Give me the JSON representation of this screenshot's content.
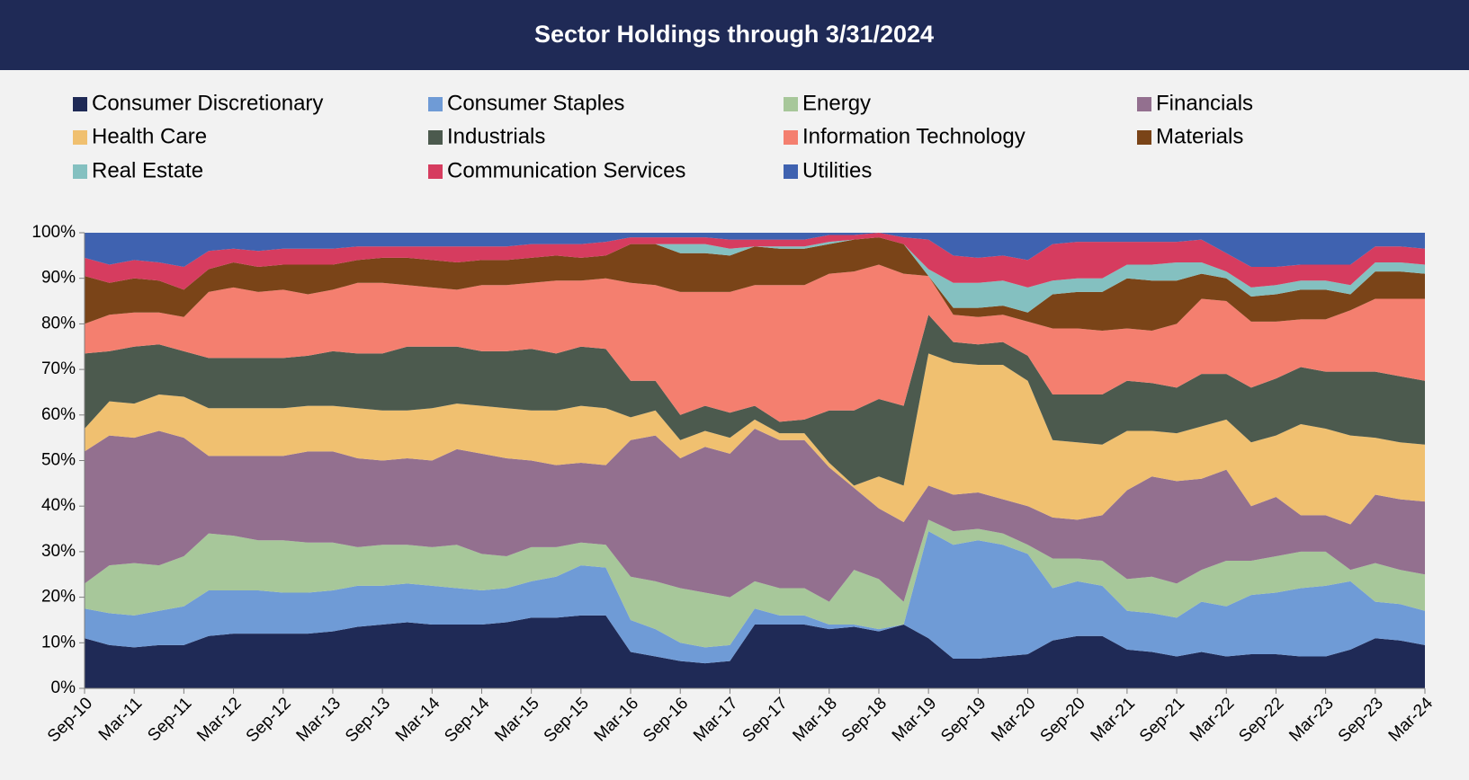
{
  "chart_data": {
    "type": "stacked-area",
    "title": "Sector Holdings through 3/31/2024",
    "categories": [
      "Sep-10",
      null,
      "Mar-11",
      null,
      "Sep-11",
      null,
      "Mar-12",
      null,
      "Sep-12",
      null,
      "Mar-13",
      null,
      "Sep-13",
      null,
      "Mar-14",
      null,
      "Sep-14",
      null,
      "Mar-15",
      null,
      "Sep-15",
      null,
      "Mar-16",
      null,
      "Sep-16",
      null,
      "Mar-17",
      null,
      "Sep-17",
      null,
      "Mar-18",
      null,
      "Sep-18",
      null,
      "Mar-19",
      null,
      "Sep-19",
      null,
      "Mar-20",
      null,
      "Sep-20",
      null,
      "Mar-21",
      null,
      "Sep-21",
      null,
      "Mar-22",
      null,
      "Sep-22",
      null,
      "Mar-23",
      null,
      "Sep-23",
      null,
      "Mar-24"
    ],
    "ylim": [
      0,
      100
    ],
    "yticks": [
      {
        "value": 0,
        "label": "0%"
      },
      {
        "value": 10,
        "label": "10%"
      },
      {
        "value": 20,
        "label": "20%"
      },
      {
        "value": 30,
        "label": "30%"
      },
      {
        "value": 40,
        "label": "40%"
      },
      {
        "value": 50,
        "label": "50%"
      },
      {
        "value": 60,
        "label": "60%"
      },
      {
        "value": 70,
        "label": "70%"
      },
      {
        "value": 80,
        "label": "80%"
      },
      {
        "value": 90,
        "label": "90%"
      },
      {
        "value": 100,
        "label": "100%"
      }
    ],
    "legend": "top",
    "series": [
      {
        "name": "Consumer Discretionary",
        "color": "#1f2a56",
        "values": [
          11,
          9.5,
          9,
          9.5,
          9.5,
          11.5,
          12,
          12,
          12,
          12,
          12.5,
          13.5,
          14,
          14.5,
          14,
          14,
          14,
          14.5,
          15.5,
          15.5,
          16,
          16,
          8,
          7,
          6,
          5.5,
          6,
          14,
          14,
          14,
          13,
          13.5,
          12.5,
          14,
          11,
          6.5,
          6.5,
          7,
          7.5,
          10.5,
          11.5,
          11.5,
          8.5,
          8,
          7,
          8,
          7,
          7.5,
          7.5,
          7,
          7,
          8.5,
          11,
          10.5,
          9.5
        ]
      },
      {
        "name": "Consumer Staples",
        "color": "#6f9bd6",
        "values": [
          6.5,
          7,
          7,
          7.5,
          8.5,
          10,
          9.5,
          9.5,
          9,
          9,
          9,
          9,
          8.5,
          8.5,
          8.5,
          8,
          7.5,
          7.5,
          8,
          9,
          11,
          10.5,
          7,
          6,
          4,
          3.5,
          3.5,
          3.5,
          2,
          2,
          1,
          0.5,
          0.5,
          0,
          23.5,
          25,
          26,
          24.5,
          22,
          11.5,
          12,
          11,
          8.5,
          8.5,
          8.5,
          11,
          11,
          13,
          13.5,
          15,
          15.5,
          15,
          8,
          8,
          7.5
        ]
      },
      {
        "name": "Energy",
        "color": "#a7c79a",
        "values": [
          5.5,
          10.5,
          11.5,
          10,
          11,
          12.5,
          12,
          11,
          11.5,
          11,
          10.5,
          8.5,
          9,
          8.5,
          8.5,
          9.5,
          8,
          7,
          7.5,
          6.5,
          5,
          5,
          9.5,
          10.5,
          12,
          12,
          10.5,
          6,
          6,
          6,
          5,
          12,
          11,
          5,
          2.5,
          3,
          2.5,
          2.5,
          2,
          6.5,
          5,
          5.5,
          7,
          8,
          7.5,
          7,
          10,
          7.5,
          8,
          8,
          7.5,
          2.5,
          8.5,
          7.5,
          8
        ]
      },
      {
        "name": "Financials",
        "color": "#93708f",
        "values": [
          29,
          28.5,
          27.5,
          29.5,
          26,
          17,
          17.5,
          18.5,
          18.5,
          20,
          20,
          19.5,
          18.5,
          19,
          19,
          21,
          22,
          21.5,
          19,
          18,
          17.5,
          17.5,
          30,
          32,
          28.5,
          32,
          31.5,
          33.5,
          32.5,
          32.5,
          29.5,
          18,
          15.5,
          17.5,
          7.5,
          8,
          8,
          7.5,
          8.5,
          9,
          8.5,
          10,
          19.5,
          22,
          22.5,
          20,
          20,
          12,
          13,
          8,
          8,
          10,
          15,
          15.5,
          16
        ]
      },
      {
        "name": "Health Care",
        "color": "#f0c070",
        "values": [
          5,
          7.5,
          7.5,
          8,
          9,
          10.5,
          10.5,
          10.5,
          10.5,
          10,
          10,
          11,
          11,
          10.5,
          11.5,
          10,
          10.5,
          11,
          11,
          12,
          12.5,
          12.5,
          5,
          5.5,
          4,
          3.5,
          3.5,
          2,
          1.5,
          1.5,
          1,
          0.5,
          7,
          8,
          29,
          29,
          28,
          29.5,
          27.5,
          17,
          17,
          15.5,
          13,
          10,
          10.5,
          11.5,
          11,
          14,
          13.5,
          20,
          19,
          19.5,
          12.5,
          12.5,
          12.5
        ]
      },
      {
        "name": "Industrials",
        "color": "#4c5a4e",
        "values": [
          16.5,
          11,
          12.5,
          11,
          10,
          11,
          11,
          11,
          11,
          11,
          12,
          12,
          12.5,
          14,
          13.5,
          12.5,
          12,
          12.5,
          13.5,
          12.5,
          13,
          13,
          8,
          6.5,
          5.5,
          5.5,
          5.5,
          3,
          2.5,
          3,
          11.5,
          16.5,
          17,
          17.5,
          8.5,
          4.5,
          4.5,
          5,
          5.5,
          10,
          10.5,
          11,
          11,
          10.5,
          10,
          11.5,
          10,
          12,
          12.5,
          12.5,
          12.5,
          14,
          14.5,
          14.5,
          14
        ]
      },
      {
        "name": "Information Technology",
        "color": "#f47f6f",
        "values": [
          6.5,
          8,
          7.5,
          7,
          7.5,
          14.5,
          15.5,
          14.5,
          15,
          13.5,
          13.5,
          15.5,
          15.5,
          13.5,
          13,
          12.5,
          14.5,
          14.5,
          14.5,
          16,
          14.5,
          15.5,
          21.5,
          21,
          27,
          25,
          26.5,
          26.5,
          30,
          29.5,
          30,
          30.5,
          29.5,
          29,
          8.5,
          6,
          6,
          6,
          7.5,
          14.5,
          14.5,
          14,
          11.5,
          11.5,
          14,
          16.5,
          16,
          14.5,
          12.5,
          10.5,
          11.5,
          13.5,
          16,
          17,
          18
        ]
      },
      {
        "name": "Materials",
        "color": "#7a4418",
        "values": [
          10.5,
          7,
          7.5,
          7,
          6,
          5,
          5.5,
          5.5,
          5.5,
          6.5,
          5.5,
          5,
          5.5,
          6,
          6,
          6,
          5.5,
          5.5,
          5.5,
          5.5,
          5,
          5,
          8.5,
          9,
          8.5,
          8.5,
          8,
          8.5,
          8,
          8,
          6.5,
          7,
          6,
          6.5,
          0,
          1.5,
          2,
          2,
          2,
          7.5,
          8,
          8.5,
          11,
          11,
          9.5,
          5.5,
          5,
          5.5,
          6,
          6.5,
          6.5,
          3.5,
          6,
          6,
          5.5
        ]
      },
      {
        "name": "Real Estate",
        "color": "#84c0c0",
        "values": [
          0,
          0,
          0,
          0,
          0,
          0,
          0,
          0,
          0,
          0,
          0,
          0,
          0,
          0,
          0,
          0,
          0,
          0,
          0,
          0,
          0,
          0,
          0,
          0,
          2,
          2,
          1.5,
          0,
          0.5,
          0.5,
          0.5,
          0,
          0,
          0,
          1.5,
          5.5,
          5.5,
          5.5,
          5.5,
          3,
          3,
          3,
          3,
          3.5,
          4,
          2.5,
          1.5,
          2,
          2,
          2,
          2,
          2,
          2,
          2,
          2
        ]
      },
      {
        "name": "Communication Services",
        "color": "#d63c5f",
        "values": [
          4,
          4,
          4,
          4,
          5,
          4,
          3,
          3.5,
          3.5,
          3.5,
          3.5,
          3,
          2.5,
          2.5,
          3,
          3.5,
          3,
          3,
          3,
          2.5,
          3,
          3,
          1.5,
          1.5,
          1.5,
          1.5,
          2,
          1.5,
          1.5,
          1.5,
          1.5,
          1,
          1,
          1.5,
          6.5,
          6,
          5.5,
          5.5,
          6,
          8,
          8,
          8,
          5,
          5,
          4.5,
          5,
          4,
          4.5,
          4,
          3.5,
          3.5,
          4.5,
          3.5,
          3.5,
          3.5
        ]
      },
      {
        "name": "Utilities",
        "color": "#3f62b0",
        "values": [
          5.5,
          7,
          6,
          6.5,
          7.5,
          4,
          3.5,
          4,
          3.5,
          3.5,
          3.5,
          3,
          3,
          3,
          3,
          3,
          3,
          3,
          2.5,
          2.5,
          2.5,
          2,
          1,
          1,
          1,
          1,
          1.5,
          1.5,
          1.5,
          1.5,
          0.5,
          0.5,
          0,
          1,
          1.5,
          5,
          5.5,
          5,
          6,
          2.5,
          2,
          2,
          2,
          2,
          2,
          1.5,
          4.5,
          7.5,
          7.5,
          7,
          7,
          7,
          3,
          3,
          3.5
        ]
      }
    ]
  }
}
